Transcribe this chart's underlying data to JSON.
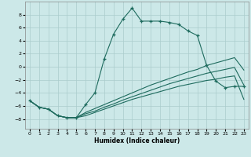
{
  "xlabel": "Humidex (Indice chaleur)",
  "xlim": [
    -0.5,
    23.5
  ],
  "ylim": [
    -9.5,
    10.0
  ],
  "background_color": "#cce8e8",
  "grid_color": "#aacccc",
  "line_color": "#1e6b5e",
  "main_x": [
    0,
    1,
    2,
    3,
    4,
    5,
    6,
    7,
    8,
    9,
    10,
    11,
    12,
    13,
    14,
    15,
    16,
    17,
    18,
    19,
    20,
    21,
    22,
    23
  ],
  "main_y": [
    -5.2,
    -6.2,
    -6.5,
    -7.5,
    -7.8,
    -7.8,
    -5.8,
    -4.0,
    1.2,
    5.0,
    7.3,
    9.0,
    7.0,
    7.0,
    7.0,
    6.8,
    6.5,
    5.5,
    4.8,
    0.2,
    -2.2,
    -3.2,
    -3.0,
    -3.0
  ],
  "line2_x": [
    0,
    1,
    2,
    3,
    4,
    5,
    6,
    7,
    8,
    9,
    10,
    11,
    12,
    13,
    14,
    15,
    16,
    17,
    18,
    19,
    20,
    21,
    22,
    23
  ],
  "line2_y": [
    -5.2,
    -6.2,
    -6.5,
    -7.5,
    -7.8,
    -7.8,
    -7.5,
    -7.0,
    -6.5,
    -6.0,
    -5.5,
    -5.0,
    -4.6,
    -4.2,
    -3.8,
    -3.4,
    -3.0,
    -2.7,
    -2.4,
    -2.1,
    -1.9,
    -1.6,
    -1.4,
    -5.0
  ],
  "line3_x": [
    0,
    1,
    2,
    3,
    4,
    5,
    6,
    7,
    8,
    9,
    10,
    11,
    12,
    13,
    14,
    15,
    16,
    17,
    18,
    19,
    20,
    21,
    22,
    23
  ],
  "line3_y": [
    -5.2,
    -6.2,
    -6.5,
    -7.5,
    -7.8,
    -7.8,
    -7.2,
    -6.8,
    -6.2,
    -5.7,
    -5.1,
    -4.6,
    -4.1,
    -3.6,
    -3.1,
    -2.6,
    -2.2,
    -1.8,
    -1.4,
    -1.0,
    -0.7,
    -0.4,
    -0.1,
    -2.8
  ],
  "line4_x": [
    0,
    1,
    2,
    3,
    4,
    5,
    6,
    7,
    8,
    9,
    10,
    11,
    12,
    13,
    14,
    15,
    16,
    17,
    18,
    19,
    20,
    21,
    22,
    23
  ],
  "line4_y": [
    -5.2,
    -6.2,
    -6.5,
    -7.5,
    -7.8,
    -7.8,
    -7.0,
    -6.4,
    -5.8,
    -5.2,
    -4.6,
    -4.0,
    -3.4,
    -2.8,
    -2.3,
    -1.8,
    -1.3,
    -0.8,
    -0.4,
    0.2,
    0.6,
    1.0,
    1.4,
    -0.5
  ],
  "xticks": [
    0,
    1,
    2,
    3,
    4,
    5,
    6,
    7,
    8,
    9,
    10,
    11,
    12,
    13,
    14,
    15,
    16,
    17,
    18,
    19,
    20,
    21,
    22,
    23
  ],
  "yticks": [
    -8,
    -6,
    -4,
    -2,
    0,
    2,
    4,
    6,
    8
  ]
}
